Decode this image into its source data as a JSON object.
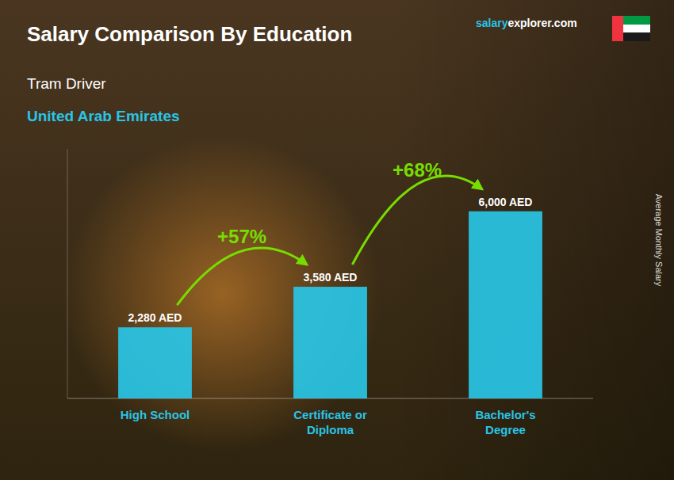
{
  "chart_data": {
    "type": "bar",
    "title": "Salary Comparison By Education",
    "subtitle": "Tram Driver",
    "annotations": [
      "United Arab Emirates",
      "salary",
      "explorer.com",
      "+57%",
      "+68%"
    ],
    "ylabel": "Average Monthly Salary",
    "categories": [
      "High School",
      "Certificate or\nDiploma",
      "Bachelor's\nDegree"
    ],
    "values": [
      2280,
      3580,
      6000
    ],
    "value_labels": [
      "2,280 AED",
      "3,580 AED",
      "6,000 AED"
    ],
    "data_labels": true,
    "color": "#29c5e6",
    "ylim": [
      0,
      8000
    ],
    "tick_labels": "x",
    "grid": false
  }
}
